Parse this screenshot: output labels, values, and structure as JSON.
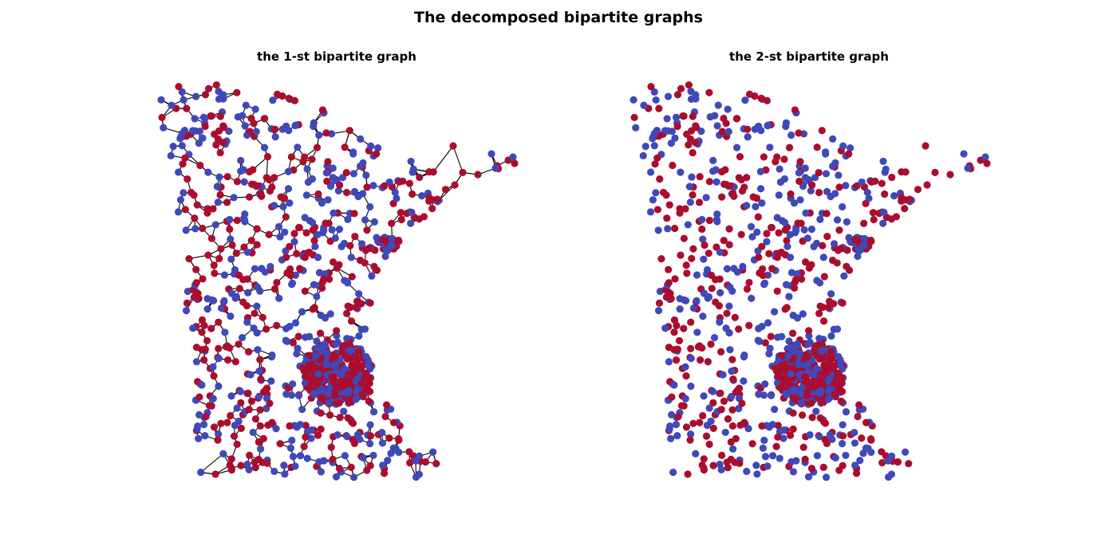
{
  "figure": {
    "title": "The decomposed bipartite graphs"
  },
  "panels": [
    {
      "id": "left",
      "title": "the 1-st bipartite graph",
      "shows_edges": true
    },
    {
      "id": "right",
      "title": "the 2-st bipartite graph",
      "shows_edges": false
    }
  ],
  "colors": {
    "partition_a": "#ab0d2e",
    "partition_b": "#3f49b8",
    "edge": "#000000",
    "background": "#ffffff"
  }
}
